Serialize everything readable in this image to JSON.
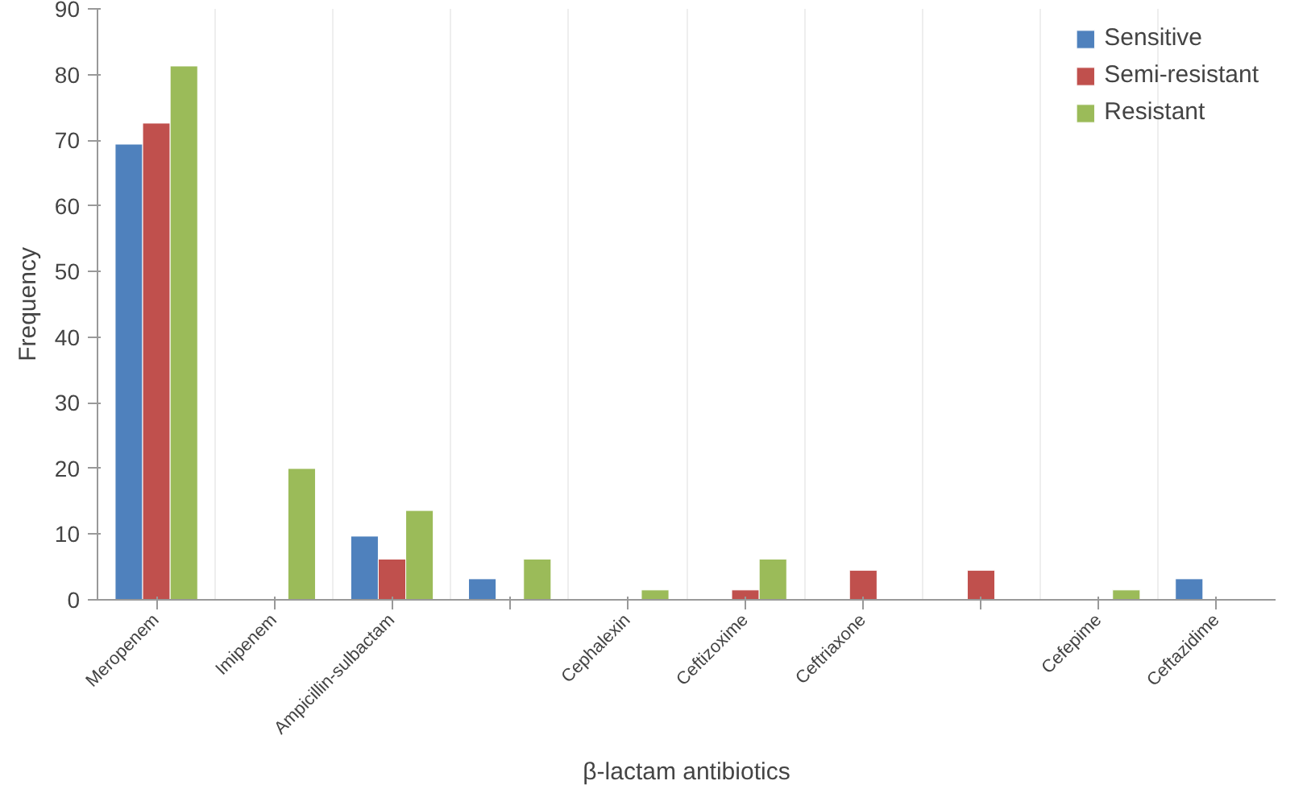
{
  "chart_data": {
    "type": "bar",
    "xlabel": "β-lactam antibiotics",
    "ylabel": "Frequency",
    "categories": [
      "Meropenem",
      "Imipenem",
      "Ampicillin-sulbactam",
      null,
      "Cephalexin",
      "Ceftizoxime",
      "Ceftriaxone",
      null,
      "Cefepime",
      "Ceftazidime"
    ],
    "series": [
      {
        "name": "Sensitive",
        "color": "#4f81bd",
        "values": [
          69.4,
          null,
          9.7,
          3.2,
          null,
          null,
          null,
          null,
          null,
          3.2
        ]
      },
      {
        "name": "Semi-resistant",
        "color": "#c0504d",
        "values": [
          72.6,
          null,
          6.2,
          null,
          null,
          1.5,
          4.5,
          4.5,
          null,
          null
        ]
      },
      {
        "name": "Resistant",
        "color": "#9bbb59",
        "values": [
          81.3,
          20,
          13.6,
          6.2,
          1.5,
          6.2,
          null,
          null,
          1.5,
          null
        ]
      }
    ],
    "ylim": [
      0,
      90
    ],
    "yticks": [
      0,
      10,
      20,
      30,
      40,
      50,
      60,
      70,
      80,
      90
    ],
    "grid": "x",
    "legend": "top right"
  }
}
